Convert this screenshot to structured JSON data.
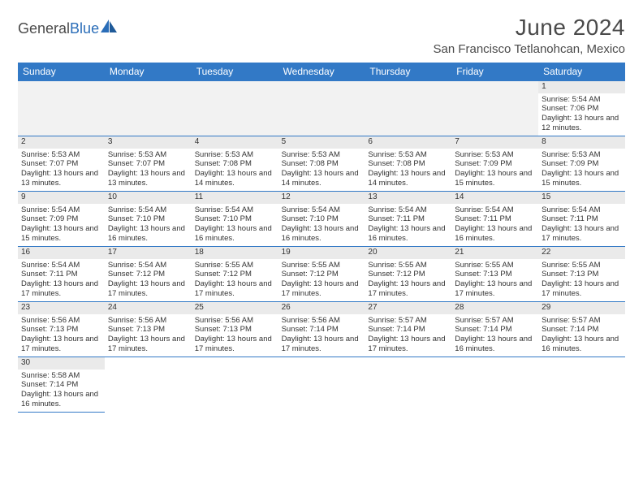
{
  "brand": {
    "name_g": "General",
    "name_b": "Blue"
  },
  "title": "June 2024",
  "location": "San Francisco Tetlanohcan, Mexico",
  "colors": {
    "header_bg": "#3279c6",
    "header_text": "#ffffff",
    "daynum_bg": "#eaeaea",
    "empty_bg": "#f2f2f2",
    "rule": "#3279c6",
    "text": "#333333"
  },
  "typography": {
    "title_fontsize": 28,
    "location_fontsize": 15,
    "head_fontsize": 12,
    "cell_fontsize": 9.5
  },
  "weekdays": [
    "Sunday",
    "Monday",
    "Tuesday",
    "Wednesday",
    "Thursday",
    "Friday",
    "Saturday"
  ],
  "leading_blanks": 6,
  "days": [
    {
      "n": 1,
      "sr": "5:54 AM",
      "ss": "7:06 PM",
      "dl": "13 hours and 12 minutes."
    },
    {
      "n": 2,
      "sr": "5:53 AM",
      "ss": "7:07 PM",
      "dl": "13 hours and 13 minutes."
    },
    {
      "n": 3,
      "sr": "5:53 AM",
      "ss": "7:07 PM",
      "dl": "13 hours and 13 minutes."
    },
    {
      "n": 4,
      "sr": "5:53 AM",
      "ss": "7:08 PM",
      "dl": "13 hours and 14 minutes."
    },
    {
      "n": 5,
      "sr": "5:53 AM",
      "ss": "7:08 PM",
      "dl": "13 hours and 14 minutes."
    },
    {
      "n": 6,
      "sr": "5:53 AM",
      "ss": "7:08 PM",
      "dl": "13 hours and 14 minutes."
    },
    {
      "n": 7,
      "sr": "5:53 AM",
      "ss": "7:09 PM",
      "dl": "13 hours and 15 minutes."
    },
    {
      "n": 8,
      "sr": "5:53 AM",
      "ss": "7:09 PM",
      "dl": "13 hours and 15 minutes."
    },
    {
      "n": 9,
      "sr": "5:54 AM",
      "ss": "7:09 PM",
      "dl": "13 hours and 15 minutes."
    },
    {
      "n": 10,
      "sr": "5:54 AM",
      "ss": "7:10 PM",
      "dl": "13 hours and 16 minutes."
    },
    {
      "n": 11,
      "sr": "5:54 AM",
      "ss": "7:10 PM",
      "dl": "13 hours and 16 minutes."
    },
    {
      "n": 12,
      "sr": "5:54 AM",
      "ss": "7:10 PM",
      "dl": "13 hours and 16 minutes."
    },
    {
      "n": 13,
      "sr": "5:54 AM",
      "ss": "7:11 PM",
      "dl": "13 hours and 16 minutes."
    },
    {
      "n": 14,
      "sr": "5:54 AM",
      "ss": "7:11 PM",
      "dl": "13 hours and 16 minutes."
    },
    {
      "n": 15,
      "sr": "5:54 AM",
      "ss": "7:11 PM",
      "dl": "13 hours and 17 minutes."
    },
    {
      "n": 16,
      "sr": "5:54 AM",
      "ss": "7:11 PM",
      "dl": "13 hours and 17 minutes."
    },
    {
      "n": 17,
      "sr": "5:54 AM",
      "ss": "7:12 PM",
      "dl": "13 hours and 17 minutes."
    },
    {
      "n": 18,
      "sr": "5:55 AM",
      "ss": "7:12 PM",
      "dl": "13 hours and 17 minutes."
    },
    {
      "n": 19,
      "sr": "5:55 AM",
      "ss": "7:12 PM",
      "dl": "13 hours and 17 minutes."
    },
    {
      "n": 20,
      "sr": "5:55 AM",
      "ss": "7:12 PM",
      "dl": "13 hours and 17 minutes."
    },
    {
      "n": 21,
      "sr": "5:55 AM",
      "ss": "7:13 PM",
      "dl": "13 hours and 17 minutes."
    },
    {
      "n": 22,
      "sr": "5:55 AM",
      "ss": "7:13 PM",
      "dl": "13 hours and 17 minutes."
    },
    {
      "n": 23,
      "sr": "5:56 AM",
      "ss": "7:13 PM",
      "dl": "13 hours and 17 minutes."
    },
    {
      "n": 24,
      "sr": "5:56 AM",
      "ss": "7:13 PM",
      "dl": "13 hours and 17 minutes."
    },
    {
      "n": 25,
      "sr": "5:56 AM",
      "ss": "7:13 PM",
      "dl": "13 hours and 17 minutes."
    },
    {
      "n": 26,
      "sr": "5:56 AM",
      "ss": "7:14 PM",
      "dl": "13 hours and 17 minutes."
    },
    {
      "n": 27,
      "sr": "5:57 AM",
      "ss": "7:14 PM",
      "dl": "13 hours and 17 minutes."
    },
    {
      "n": 28,
      "sr": "5:57 AM",
      "ss": "7:14 PM",
      "dl": "13 hours and 16 minutes."
    },
    {
      "n": 29,
      "sr": "5:57 AM",
      "ss": "7:14 PM",
      "dl": "13 hours and 16 minutes."
    },
    {
      "n": 30,
      "sr": "5:58 AM",
      "ss": "7:14 PM",
      "dl": "13 hours and 16 minutes."
    }
  ],
  "labels": {
    "sunrise": "Sunrise:",
    "sunset": "Sunset:",
    "daylight": "Daylight:"
  }
}
